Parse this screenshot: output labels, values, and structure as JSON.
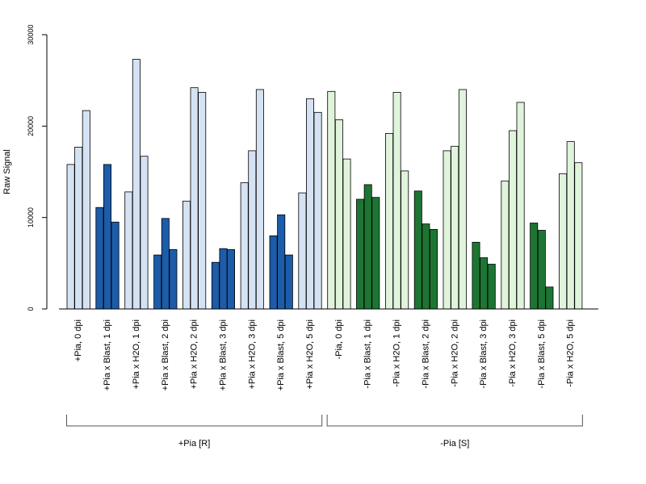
{
  "chart_data": {
    "type": "bar",
    "ylabel": "Raw Signal",
    "ylim": [
      0,
      30000
    ],
    "yticks": [
      0,
      10000,
      20000,
      30000
    ],
    "grid": false,
    "legend": "none",
    "categories": [
      "+Pia, 0 dpi",
      "+Pia x Blast, 1 dpi",
      "+Pia x H2O, 1 dpi",
      "+Pia x Blast, 2 dpi",
      "+Pia x H2O, 2 dpi",
      "+Pia x Blast, 3 dpi",
      "+Pia x H2O, 3 dpi",
      "+Pia x Blast, 5 dpi",
      "+Pia x H2O, 5 dpi",
      "-Pia, 0 dpi",
      "-Pia x Blast, 1 dpi",
      "-Pia x H2O, 1 dpi",
      "-Pia x Blast, 2 dpi",
      "-Pia x H2O, 2 dpi",
      "-Pia x Blast, 3 dpi",
      "-Pia x H2O, 3 dpi",
      "-Pia x Blast, 5 dpi",
      "-Pia x H2O, 5 dpi"
    ],
    "replicates": [
      [
        15800,
        17700,
        21700
      ],
      [
        11100,
        15800,
        9500
      ],
      [
        12800,
        27300,
        16700
      ],
      [
        5900,
        9900,
        6500
      ],
      [
        11800,
        24200,
        23700
      ],
      [
        5100,
        6600,
        6500
      ],
      [
        13800,
        17300,
        24000
      ],
      [
        8000,
        10300,
        5900
      ],
      [
        12700,
        23000,
        21500
      ],
      [
        23800,
        20700,
        16400
      ],
      [
        12000,
        13600,
        12200
      ],
      [
        19200,
        23700,
        15100
      ],
      [
        12900,
        9300,
        8700
      ],
      [
        17300,
        17800,
        24000
      ],
      [
        7300,
        5600,
        4900
      ],
      [
        14000,
        19500,
        22600
      ],
      [
        9400,
        8600,
        2400
      ],
      [
        14800,
        18300,
        16000
      ]
    ],
    "groups": [
      {
        "label": "+Pia [R]",
        "start": 0,
        "end": 8
      },
      {
        "label": "-Pia [S]",
        "start": 9,
        "end": 17
      }
    ],
    "colors": {
      "plus_h2o": "#d5e2f3",
      "plus_blast": "#1c5ca8",
      "minus_h2o": "#e0f3db",
      "minus_blast": "#1d7533",
      "outline": "#000000"
    }
  }
}
